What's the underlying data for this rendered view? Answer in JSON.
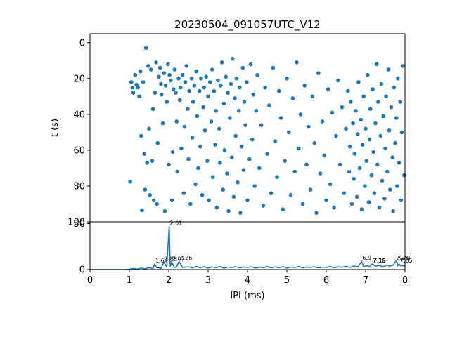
{
  "chart_data": [
    {
      "type": "scatter",
      "title": "20230504_091057UTC_V12",
      "xlabel": "",
      "ylabel": "t (s)",
      "xlim": [
        0,
        8
      ],
      "ylim": [
        100,
        -5
      ],
      "y_inverted": true,
      "yticks": [
        "0",
        "20",
        "40",
        "60",
        "80",
        "100"
      ],
      "color": "#1f77b4",
      "note_generation": "points approximated from the figure",
      "points": [
        [
          1.02,
          77.5
        ],
        [
          1.05,
          22
        ],
        [
          1.08,
          25
        ],
        [
          1.1,
          28
        ],
        [
          1.15,
          18
        ],
        [
          1.18,
          23.5
        ],
        [
          1.22,
          25
        ],
        [
          1.25,
          30
        ],
        [
          1.28,
          16
        ],
        [
          1.3,
          52
        ],
        [
          1.32,
          93.5
        ],
        [
          1.35,
          22
        ],
        [
          1.38,
          62
        ],
        [
          1.4,
          82
        ],
        [
          1.42,
          3
        ],
        [
          1.45,
          67
        ],
        [
          1.48,
          13
        ],
        [
          1.5,
          48
        ],
        [
          1.52,
          85
        ],
        [
          1.55,
          15
        ],
        [
          1.58,
          66
        ],
        [
          1.6,
          37
        ],
        [
          1.62,
          88
        ],
        [
          1.65,
          28
        ],
        [
          1.68,
          11
        ],
        [
          1.7,
          90
        ],
        [
          1.72,
          56
        ],
        [
          1.75,
          19
        ],
        [
          1.78,
          14
        ],
        [
          1.8,
          23
        ],
        [
          1.82,
          29
        ],
        [
          1.85,
          45
        ],
        [
          1.88,
          17
        ],
        [
          1.9,
          94
        ],
        [
          1.92,
          24
        ],
        [
          1.95,
          33
        ],
        [
          1.98,
          12
        ],
        [
          2.0,
          68
        ],
        [
          2.02,
          18
        ],
        [
          2.05,
          21
        ],
        [
          2.08,
          88
        ],
        [
          2.1,
          61
        ],
        [
          2.12,
          26
        ],
        [
          2.15,
          15
        ],
        [
          2.18,
          28
        ],
        [
          2.2,
          44
        ],
        [
          2.22,
          72
        ],
        [
          2.25,
          20
        ],
        [
          2.28,
          32
        ],
        [
          2.3,
          25
        ],
        [
          2.32,
          59
        ],
        [
          2.35,
          18
        ],
        [
          2.38,
          84
        ],
        [
          2.4,
          47
        ],
        [
          2.42,
          22
        ],
        [
          2.45,
          13
        ],
        [
          2.48,
          37
        ],
        [
          2.5,
          65
        ],
        [
          2.52,
          27
        ],
        [
          2.55,
          90
        ],
        [
          2.58,
          20
        ],
        [
          2.6,
          53
        ],
        [
          2.62,
          33
        ],
        [
          2.65,
          24
        ],
        [
          2.68,
          79
        ],
        [
          2.7,
          16
        ],
        [
          2.72,
          41
        ],
        [
          2.75,
          70
        ],
        [
          2.78,
          27
        ],
        [
          2.8,
          58
        ],
        [
          2.82,
          20
        ],
        [
          2.85,
          85
        ],
        [
          2.88,
          36
        ],
        [
          2.9,
          25
        ],
        [
          2.92,
          49
        ],
        [
          2.95,
          19
        ],
        [
          2.98,
          66
        ],
        [
          3.0,
          30
        ],
        [
          3.02,
          88
        ],
        [
          3.05,
          22
        ],
        [
          3.08,
          44
        ],
        [
          3.1,
          15
        ],
        [
          3.12,
          75
        ],
        [
          3.15,
          27
        ],
        [
          3.18,
          57
        ],
        [
          3.2,
          38
        ],
        [
          3.22,
          92
        ],
        [
          3.25,
          21
        ],
        [
          3.28,
          48
        ],
        [
          3.3,
          67
        ],
        [
          3.32,
          24
        ],
        [
          3.35,
          11
        ],
        [
          3.38,
          82
        ],
        [
          3.4,
          34
        ],
        [
          3.42,
          60
        ],
        [
          3.45,
          19
        ],
        [
          3.48,
          73
        ],
        [
          3.5,
          28
        ],
        [
          3.52,
          94
        ],
        [
          3.55,
          42
        ],
        [
          3.58,
          23
        ],
        [
          3.6,
          64
        ],
        [
          3.62,
          9
        ],
        [
          3.65,
          86
        ],
        [
          3.68,
          31
        ],
        [
          3.7,
          52
        ],
        [
          3.72,
          20
        ],
        [
          3.75,
          78
        ],
        [
          3.78,
          38
        ],
        [
          3.8,
          25
        ],
        [
          3.82,
          95
        ],
        [
          3.85,
          58
        ],
        [
          3.88,
          14
        ],
        [
          3.9,
          71
        ],
        [
          3.92,
          33
        ],
        [
          3.95,
          46
        ],
        [
          3.98,
          22
        ],
        [
          4.0,
          88
        ],
        [
          4.05,
          65
        ],
        [
          4.08,
          12
        ],
        [
          4.12,
          54
        ],
        [
          4.15,
          29
        ],
        [
          4.18,
          80
        ],
        [
          4.22,
          38
        ],
        [
          4.25,
          18
        ],
        [
          4.3,
          70
        ],
        [
          4.35,
          46
        ],
        [
          4.4,
          91
        ],
        [
          4.45,
          25
        ],
        [
          4.5,
          62
        ],
        [
          4.55,
          35
        ],
        [
          4.6,
          84
        ],
        [
          4.65,
          14
        ],
        [
          4.7,
          55
        ],
        [
          4.75,
          75
        ],
        [
          4.8,
          27
        ],
        [
          4.85,
          42
        ],
        [
          4.9,
          93
        ],
        [
          4.95,
          66
        ],
        [
          5.0,
          20
        ],
        [
          5.05,
          50
        ],
        [
          5.1,
          85
        ],
        [
          5.15,
          31
        ],
        [
          5.2,
          72
        ],
        [
          5.25,
          11
        ],
        [
          5.3,
          59
        ],
        [
          5.35,
          40
        ],
        [
          5.4,
          90
        ],
        [
          5.45,
          24
        ],
        [
          5.5,
          68
        ],
        [
          5.55,
          47
        ],
        [
          5.6,
          82
        ],
        [
          5.65,
          30
        ],
        [
          5.7,
          56
        ],
        [
          5.75,
          95
        ],
        [
          5.8,
          17
        ],
        [
          5.85,
          73
        ],
        [
          5.9,
          44
        ],
        [
          5.95,
          63
        ],
        [
          6.0,
          88
        ],
        [
          6.05,
          26
        ],
        [
          6.1,
          79
        ],
        [
          6.15,
          39
        ],
        [
          6.2,
          92
        ],
        [
          6.25,
          52
        ],
        [
          6.3,
          21
        ],
        [
          6.35,
          68
        ],
        [
          6.4,
          36
        ],
        [
          6.45,
          84
        ],
        [
          6.5,
          48
        ],
        [
          6.55,
          27
        ],
        [
          6.58,
          72
        ],
        [
          6.6,
          58
        ],
        [
          6.62,
          33
        ],
        [
          6.65,
          90
        ],
        [
          6.68,
          45
        ],
        [
          6.7,
          76
        ],
        [
          6.72,
          62
        ],
        [
          6.75,
          38
        ],
        [
          6.78,
          86
        ],
        [
          6.8,
          51
        ],
        [
          6.82,
          22
        ],
        [
          6.85,
          70
        ],
        [
          6.88,
          43
        ],
        [
          6.9,
          93
        ],
        [
          6.92,
          57
        ],
        [
          6.95,
          30
        ],
        [
          6.98,
          80
        ],
        [
          7.0,
          48
        ],
        [
          7.02,
          66
        ],
        [
          7.05,
          18
        ],
        [
          7.08,
          89
        ],
        [
          7.1,
          54
        ],
        [
          7.12,
          37
        ],
        [
          7.15,
          74
        ],
        [
          7.18,
          26
        ],
        [
          7.2,
          61
        ],
        [
          7.22,
          84
        ],
        [
          7.25,
          45
        ],
        [
          7.28,
          12
        ],
        [
          7.3,
          68
        ],
        [
          7.32,
          33
        ],
        [
          7.35,
          92
        ],
        [
          7.38,
          52
        ],
        [
          7.4,
          23
        ],
        [
          7.42,
          77
        ],
        [
          7.45,
          41
        ],
        [
          7.48,
          87
        ],
        [
          7.5,
          59
        ],
        [
          7.52,
          30
        ],
        [
          7.55,
          72
        ],
        [
          7.58,
          15
        ],
        [
          7.6,
          49
        ],
        [
          7.62,
          82
        ],
        [
          7.65,
          36
        ],
        [
          7.68,
          64
        ],
        [
          7.7,
          94
        ],
        [
          7.72,
          25
        ],
        [
          7.75,
          56
        ],
        [
          7.78,
          42
        ],
        [
          7.8,
          80
        ],
        [
          7.82,
          20
        ],
        [
          7.85,
          67
        ],
        [
          7.88,
          33
        ],
        [
          7.9,
          88
        ],
        [
          7.92,
          50
        ],
        [
          7.95,
          13
        ],
        [
          7.98,
          74
        ]
      ]
    },
    {
      "type": "line",
      "title": "",
      "xlabel": "IPI (ms)",
      "ylabel": "",
      "xlim": [
        0,
        8
      ],
      "ylim": [
        0,
        50
      ],
      "xticks": [
        "0",
        "1",
        "2",
        "3",
        "4",
        "5",
        "6",
        "7",
        "8"
      ],
      "yticks": [
        "0",
        "50"
      ],
      "color": "#1f77b4",
      "peaks": [
        {
          "x": 1.64,
          "y": 6,
          "label": "1.64"
        },
        {
          "x": 1.88,
          "y": 8,
          "label": "1.88"
        },
        {
          "x": 2.01,
          "y": 47,
          "label": "2.01"
        },
        {
          "x": 2.07,
          "y": 8,
          "label": "2.07"
        },
        {
          "x": 2.26,
          "y": 9,
          "label": "2.26"
        },
        {
          "x": 6.9,
          "y": 9,
          "label": "6.9"
        },
        {
          "x": 7.16,
          "y": 6,
          "label": "7.16"
        },
        {
          "x": 7.18,
          "y": 6,
          "label": "7.18"
        },
        {
          "x": 7.76,
          "y": 9,
          "label": "7.76"
        },
        {
          "x": 7.79,
          "y": 9,
          "label": "7.79"
        },
        {
          "x": 7.85,
          "y": 6,
          "label": "7.85"
        }
      ],
      "baseline": [
        [
          0,
          0
        ],
        [
          0.9,
          0
        ],
        [
          1.0,
          0.3
        ],
        [
          1.1,
          1.2
        ],
        [
          1.2,
          0.5
        ],
        [
          1.3,
          1.6
        ],
        [
          1.4,
          0.8
        ],
        [
          1.5,
          2.1
        ],
        [
          1.6,
          1.1
        ],
        [
          1.64,
          6
        ],
        [
          1.7,
          2.2
        ],
        [
          1.8,
          1.3
        ],
        [
          1.88,
          8
        ],
        [
          1.95,
          2.5
        ],
        [
          2.01,
          47
        ],
        [
          2.04,
          3
        ],
        [
          2.07,
          8
        ],
        [
          2.15,
          2.2
        ],
        [
          2.2,
          3.1
        ],
        [
          2.26,
          9
        ],
        [
          2.35,
          2.4
        ],
        [
          2.5,
          3.0
        ],
        [
          2.6,
          1.8
        ],
        [
          2.7,
          3.4
        ],
        [
          2.8,
          2.0
        ],
        [
          2.9,
          3.1
        ],
        [
          3.0,
          1.7
        ],
        [
          3.1,
          2.9
        ],
        [
          3.2,
          2.1
        ],
        [
          3.3,
          3.3
        ],
        [
          3.4,
          1.6
        ],
        [
          3.5,
          2.7
        ],
        [
          3.6,
          2.2
        ],
        [
          3.7,
          3.2
        ],
        [
          3.8,
          1.9
        ],
        [
          3.9,
          2.8
        ],
        [
          4.0,
          2.3
        ],
        [
          4.1,
          3.0
        ],
        [
          4.2,
          1.7
        ],
        [
          4.3,
          2.6
        ],
        [
          4.4,
          2.1
        ],
        [
          4.5,
          3.4
        ],
        [
          4.6,
          1.8
        ],
        [
          4.7,
          2.9
        ],
        [
          4.8,
          2.0
        ],
        [
          4.9,
          3.2
        ],
        [
          5.0,
          1.6
        ],
        [
          5.1,
          2.7
        ],
        [
          5.2,
          2.2
        ],
        [
          5.3,
          3.3
        ],
        [
          5.4,
          1.9
        ],
        [
          5.5,
          2.8
        ],
        [
          5.6,
          2.4
        ],
        [
          5.7,
          3.1
        ],
        [
          5.8,
          1.8
        ],
        [
          5.9,
          2.7
        ],
        [
          6.0,
          2.3
        ],
        [
          6.1,
          3.4
        ],
        [
          6.2,
          2.0
        ],
        [
          6.3,
          3.0
        ],
        [
          6.4,
          2.5
        ],
        [
          6.5,
          3.6
        ],
        [
          6.6,
          2.2
        ],
        [
          6.7,
          3.8
        ],
        [
          6.8,
          2.8
        ],
        [
          6.9,
          9
        ],
        [
          6.95,
          3.2
        ],
        [
          7.05,
          4.1
        ],
        [
          7.1,
          2.9
        ],
        [
          7.16,
          6
        ],
        [
          7.18,
          6
        ],
        [
          7.25,
          3.5
        ],
        [
          7.35,
          4.4
        ],
        [
          7.45,
          3.1
        ],
        [
          7.55,
          5.0
        ],
        [
          7.6,
          3.6
        ],
        [
          7.7,
          4.8
        ],
        [
          7.76,
          9
        ],
        [
          7.79,
          9
        ],
        [
          7.82,
          4.2
        ],
        [
          7.85,
          6
        ],
        [
          7.9,
          3.7
        ],
        [
          7.95,
          4.6
        ],
        [
          8.0,
          3.0
        ]
      ]
    }
  ]
}
